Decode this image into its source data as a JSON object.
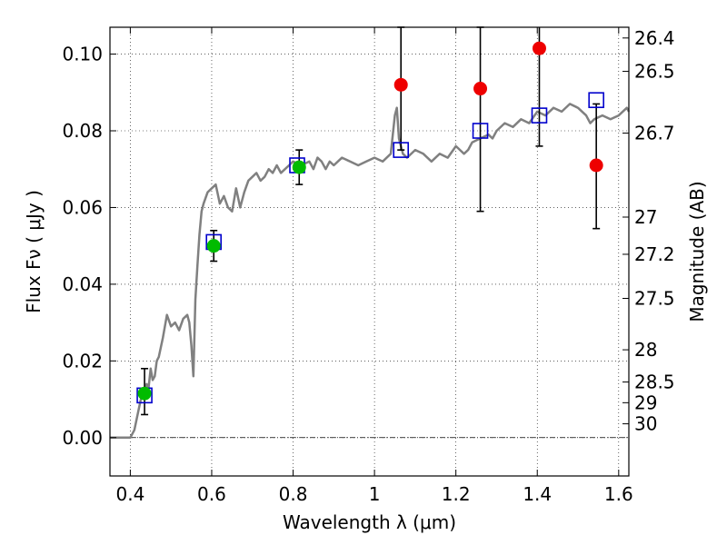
{
  "chart_data": {
    "type": "scatter",
    "xlabel": "Wavelength  λ (μm)",
    "ylabel": "Flux  Fν  ( μJy )",
    "y2label": "Magnitude (AB)",
    "xlim": [
      0.35,
      1.625
    ],
    "ylim": [
      -0.01,
      0.107
    ],
    "grid": true,
    "xticks": [
      {
        "v": 0.4,
        "label": "0.4"
      },
      {
        "v": 0.6,
        "label": "0.6"
      },
      {
        "v": 0.8,
        "label": "0.8"
      },
      {
        "v": 1.0,
        "label": "1"
      },
      {
        "v": 1.2,
        "label": "1.2"
      },
      {
        "v": 1.4,
        "label": "1.4"
      },
      {
        "v": 1.6,
        "label": "1.6"
      }
    ],
    "yticks": [
      {
        "v": 0.0,
        "label": "0.00"
      },
      {
        "v": 0.02,
        "label": "0.02"
      },
      {
        "v": 0.04,
        "label": "0.04"
      },
      {
        "v": 0.06,
        "label": "0.06"
      },
      {
        "v": 0.08,
        "label": "0.08"
      },
      {
        "v": 0.1,
        "label": "0.10"
      }
    ],
    "magticks": [
      {
        "flux": 0.1042,
        "label": "26.4"
      },
      {
        "flux": 0.0955,
        "label": "26.5"
      },
      {
        "flux": 0.0794,
        "label": "26.7"
      },
      {
        "flux": 0.0575,
        "label": "27"
      },
      {
        "flux": 0.0478,
        "label": "27.2"
      },
      {
        "flux": 0.0363,
        "label": "27.5"
      },
      {
        "flux": 0.0229,
        "label": "28"
      },
      {
        "flux": 0.0145,
        "label": "28.5"
      },
      {
        "flux": 0.0091,
        "label": "29"
      },
      {
        "flux": 0.0036,
        "label": "30"
      }
    ],
    "sed_model": {
      "name": "",
      "color": "#808080",
      "x": [
        0.35,
        0.4,
        0.41,
        0.42,
        0.43,
        0.435,
        0.44,
        0.445,
        0.45,
        0.455,
        0.46,
        0.465,
        0.47,
        0.48,
        0.49,
        0.5,
        0.51,
        0.52,
        0.53,
        0.54,
        0.545,
        0.55,
        0.555,
        0.56,
        0.565,
        0.57,
        0.575,
        0.58,
        0.59,
        0.6,
        0.61,
        0.62,
        0.63,
        0.64,
        0.65,
        0.66,
        0.67,
        0.68,
        0.69,
        0.7,
        0.71,
        0.72,
        0.73,
        0.74,
        0.75,
        0.76,
        0.77,
        0.78,
        0.79,
        0.8,
        0.82,
        0.84,
        0.85,
        0.86,
        0.87,
        0.88,
        0.89,
        0.9,
        0.92,
        0.94,
        0.96,
        0.98,
        1.0,
        1.02,
        1.04,
        1.05,
        1.055,
        1.06,
        1.07,
        1.08,
        1.1,
        1.12,
        1.14,
        1.16,
        1.18,
        1.2,
        1.22,
        1.23,
        1.24,
        1.26,
        1.28,
        1.29,
        1.3,
        1.32,
        1.34,
        1.36,
        1.38,
        1.4,
        1.42,
        1.44,
        1.46,
        1.48,
        1.5,
        1.52,
        1.53,
        1.54,
        1.56,
        1.58,
        1.6,
        1.62,
        1.625
      ],
      "y": [
        0.0,
        0.0,
        0.002,
        0.007,
        0.012,
        0.01,
        0.014,
        0.013,
        0.018,
        0.015,
        0.016,
        0.02,
        0.021,
        0.026,
        0.032,
        0.029,
        0.03,
        0.028,
        0.031,
        0.032,
        0.03,
        0.024,
        0.016,
        0.036,
        0.045,
        0.053,
        0.059,
        0.061,
        0.064,
        0.065,
        0.066,
        0.061,
        0.063,
        0.06,
        0.059,
        0.065,
        0.06,
        0.064,
        0.067,
        0.068,
        0.069,
        0.067,
        0.068,
        0.07,
        0.069,
        0.071,
        0.069,
        0.07,
        0.071,
        0.072,
        0.071,
        0.072,
        0.07,
        0.073,
        0.072,
        0.07,
        0.072,
        0.071,
        0.073,
        0.072,
        0.071,
        0.072,
        0.073,
        0.072,
        0.074,
        0.084,
        0.086,
        0.078,
        0.074,
        0.073,
        0.075,
        0.074,
        0.072,
        0.074,
        0.073,
        0.076,
        0.074,
        0.075,
        0.077,
        0.078,
        0.079,
        0.078,
        0.08,
        0.082,
        0.081,
        0.083,
        0.082,
        0.085,
        0.084,
        0.086,
        0.085,
        0.087,
        0.086,
        0.084,
        0.082,
        0.083,
        0.084,
        0.083,
        0.084,
        0.086,
        0.085
      ]
    },
    "model_points": {
      "marker": "square",
      "color": "#0000cc",
      "x": [
        0.435,
        0.605,
        0.81,
        1.065,
        1.26,
        1.405,
        1.545
      ],
      "y": [
        0.011,
        0.051,
        0.071,
        0.075,
        0.08,
        0.084,
        0.088
      ]
    },
    "detections": {
      "marker": "circle",
      "color": "#00bb00",
      "x": [
        0.435,
        0.605,
        0.815
      ],
      "y": [
        0.0115,
        0.05,
        0.0705
      ],
      "err_lo": [
        0.0055,
        0.004,
        0.0045
      ],
      "err_hi": [
        0.0065,
        0.004,
        0.0045
      ]
    },
    "upper_points": {
      "marker": "circle",
      "color": "#ee0000",
      "x": [
        1.065,
        1.26,
        1.405,
        1.545
      ],
      "y": [
        0.092,
        0.091,
        0.1015,
        0.071
      ],
      "err_lo": [
        0.017,
        0.032,
        0.0255,
        0.0165
      ],
      "err_hi": [
        0.015,
        0.016,
        0.006,
        0.016
      ]
    }
  }
}
